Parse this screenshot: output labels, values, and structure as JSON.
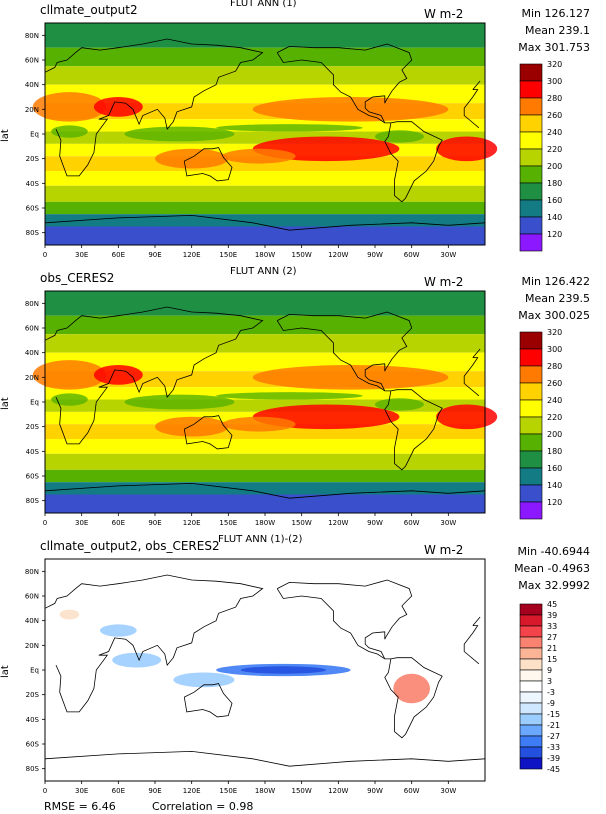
{
  "chart_data": [
    {
      "type": "heatmap",
      "case_label": "cllmate_output2",
      "title": "FLUT ANN (1)",
      "units": "W m-2",
      "stats": {
        "min": "Min 126.127",
        "mean": "Mean 239.1",
        "max": "Max 301.753"
      },
      "ylabel": "lat",
      "xticks": [
        "0",
        "30E",
        "60E",
        "90E",
        "120E",
        "150E",
        "180W",
        "150W",
        "120W",
        "90W",
        "60W",
        "30W"
      ],
      "yticks": [
        "80N",
        "60N",
        "40N",
        "20N",
        "Eq",
        "20S",
        "40S",
        "60S",
        "80S"
      ],
      "colorbar_levels": [
        "320",
        "300",
        "280",
        "260",
        "240",
        "220",
        "200",
        "180",
        "160",
        "140",
        "120"
      ],
      "colorbar_colors": [
        "#9b0000",
        "#ff0000",
        "#ff7a00",
        "#ffd200",
        "#ffff00",
        "#b8d400",
        "#56b100",
        "#1f8f43",
        "#137b84",
        "#3a4fcc",
        "#8b18ff"
      ]
    },
    {
      "type": "heatmap",
      "case_label": "obs_CERES2",
      "title": "FLUT ANN (2)",
      "units": "W m-2",
      "stats": {
        "min": "Min 126.422",
        "mean": "Mean 239.5",
        "max": "Max 300.025"
      },
      "ylabel": "lat",
      "xticks": [
        "0",
        "30E",
        "60E",
        "90E",
        "120E",
        "150E",
        "180W",
        "150W",
        "120W",
        "90W",
        "60W",
        "30W"
      ],
      "yticks": [
        "80N",
        "60N",
        "40N",
        "20N",
        "Eq",
        "20S",
        "40S",
        "60S",
        "80S"
      ],
      "colorbar_levels": [
        "320",
        "300",
        "280",
        "260",
        "240",
        "220",
        "200",
        "180",
        "160",
        "140",
        "120"
      ],
      "colorbar_colors": [
        "#9b0000",
        "#ff0000",
        "#ff7a00",
        "#ffd200",
        "#ffff00",
        "#b8d400",
        "#56b100",
        "#1f8f43",
        "#137b84",
        "#3a4fcc",
        "#8b18ff"
      ]
    },
    {
      "type": "heatmap",
      "case_label": "cllmate_output2, obs_CERES2",
      "title": "FLUT ANN (1)-(2)",
      "units": "W m-2",
      "stats": {
        "min": "Min -40.6944",
        "mean": "Mean -0.4963",
        "max": "Max 32.9992"
      },
      "ylabel": "lat",
      "xticks": [
        "0",
        "30E",
        "60E",
        "90E",
        "120E",
        "150E",
        "180W",
        "150W",
        "120W",
        "90W",
        "60W",
        "30W"
      ],
      "yticks": [
        "80N",
        "60N",
        "40N",
        "20N",
        "Eq",
        "20S",
        "40S",
        "60S",
        "80S"
      ],
      "colorbar_levels": [
        "45",
        "39",
        "33",
        "27",
        "21",
        "15",
        "9",
        "3",
        "-3",
        "-9",
        "-15",
        "-21",
        "-27",
        "-33",
        "-39",
        "-45"
      ],
      "colorbar_colors": [
        "#a5001e",
        "#d7192b",
        "#f4434a",
        "#f98370",
        "#fbb596",
        "#fce0c8",
        "#fff8ee",
        "#ffffff",
        "#eef6ff",
        "#cfe8ff",
        "#9ccdff",
        "#6aa8ff",
        "#3d7cf4",
        "#2450e0",
        "#0e14c4"
      ],
      "rmse": "RMSE = 6.46",
      "correlation": "Correlation = 0.98"
    }
  ]
}
